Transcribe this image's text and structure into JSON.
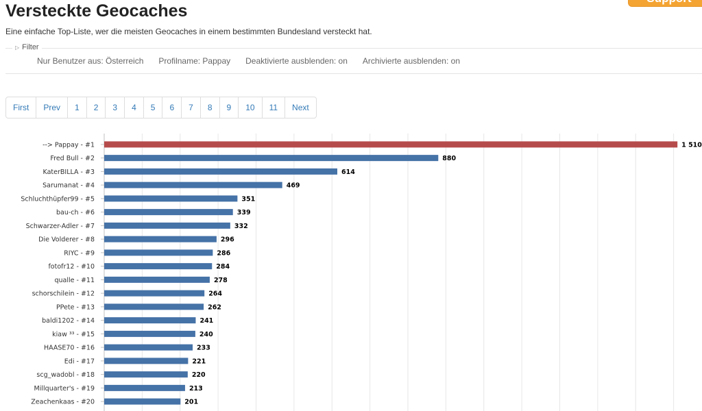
{
  "page": {
    "title": "Versteckte Geocaches",
    "subtitle": "Eine einfache Top-Liste, wer die meisten Geocaches in einem bestimmten Bundesland versteckt hat.",
    "support_label": "Support"
  },
  "filter": {
    "label": "Filter",
    "values": [
      "Nur Benutzer aus: Österreich",
      "Profilname: Pappay",
      "Deaktivierte ausblenden: on",
      "Archivierte ausblenden: on"
    ]
  },
  "pagination": [
    "First",
    "Prev",
    "1",
    "2",
    "3",
    "4",
    "5",
    "6",
    "7",
    "8",
    "9",
    "10",
    "11",
    "Next"
  ],
  "colors": {
    "highlight_bar": "#b64b4b",
    "bar": "#4572a7",
    "grid": "#e6e6e6"
  },
  "chart_data": {
    "type": "bar",
    "orientation": "horizontal",
    "categories": [
      "--> Pappay - #1",
      "Fred Bull - #2",
      "KaterBILLA - #3",
      "Sarumanat - #4",
      "Schluchthüpfer99 - #5",
      "bau-ch - #6",
      "Schwarzer-Adler - #7",
      "Die Volderer - #8",
      "RIYC - #9",
      "fotofr12 - #10",
      "qualle - #11",
      "schorschilein - #12",
      "PPete - #13",
      "baldi1202 - #14",
      "kiaw ³³ - #15",
      "HAASE70 - #16",
      "Edi - #17",
      "scg_wadobl - #18",
      "Millquarter's - #19",
      "Zeachenkaas - #20"
    ],
    "values": [
      1510,
      880,
      614,
      469,
      351,
      339,
      332,
      296,
      286,
      284,
      278,
      264,
      262,
      241,
      240,
      233,
      221,
      220,
      213,
      201
    ],
    "value_labels": [
      "1 510",
      "880",
      "614",
      "469",
      "351",
      "339",
      "332",
      "296",
      "286",
      "284",
      "278",
      "264",
      "262",
      "241",
      "240",
      "233",
      "221",
      "220",
      "213",
      "201"
    ],
    "highlight_index": 0,
    "xlim": [
      0,
      1600
    ],
    "grid": true,
    "legend": "none"
  }
}
